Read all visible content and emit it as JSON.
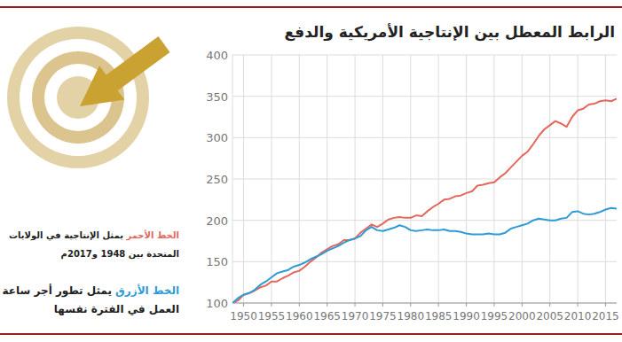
{
  "chart_data": {
    "type": "line",
    "title": "الرابط المعطل بين الإنتاجية الأمريكية والدفع",
    "x": [
      1948,
      1949,
      1950,
      1951,
      1952,
      1953,
      1954,
      1955,
      1956,
      1957,
      1958,
      1959,
      1960,
      1961,
      1962,
      1963,
      1964,
      1965,
      1966,
      1967,
      1968,
      1969,
      1970,
      1971,
      1972,
      1973,
      1974,
      1975,
      1976,
      1977,
      1978,
      1979,
      1980,
      1981,
      1982,
      1983,
      1984,
      1985,
      1986,
      1987,
      1988,
      1989,
      1990,
      1991,
      1992,
      1993,
      1994,
      1995,
      1996,
      1997,
      1998,
      1999,
      2000,
      2001,
      2002,
      2003,
      2004,
      2005,
      2006,
      2007,
      2008,
      2009,
      2010,
      2011,
      2012,
      2013,
      2014,
      2015,
      2016,
      2017
    ],
    "xlim": [
      1948,
      2017
    ],
    "xticks": [
      1950,
      1955,
      1960,
      1965,
      1970,
      1975,
      1980,
      1985,
      1990,
      1995,
      2000,
      2005,
      2010,
      2015
    ],
    "ylim": [
      100,
      400
    ],
    "yticks": [
      100,
      150,
      200,
      250,
      300,
      350,
      400
    ],
    "grid": true,
    "series": [
      {
        "name": "الخط الأحمر",
        "color": "#e5675c",
        "description": [
          "يمثل الإنتاجية في الولايات",
          "المتحدة بين 1948 و2017م"
        ],
        "values": [
          100,
          103,
          110,
          112,
          115,
          119,
          121,
          126,
          126,
          130,
          133,
          137,
          139,
          144,
          150,
          155,
          161,
          165,
          169,
          171,
          176,
          176,
          178,
          185,
          190,
          195,
          192,
          196,
          201,
          203,
          204,
          203,
          203,
          206,
          205,
          211,
          216,
          220,
          225,
          226,
          229,
          230,
          233,
          235,
          242,
          243,
          245,
          246,
          252,
          257,
          264,
          271,
          278,
          283,
          292,
          302,
          310,
          315,
          320,
          317,
          313,
          325,
          333,
          335,
          340,
          341,
          344,
          345,
          344,
          347
        ]
      },
      {
        "name": "الخط الأزرق",
        "color": "#2e9bd6",
        "description": [
          "يمثل تطور أجر ساعة",
          "العمل في الفترة نفسها"
        ],
        "values": [
          100,
          106,
          110,
          112,
          116,
          122,
          126,
          131,
          136,
          138,
          140,
          144,
          146,
          149,
          153,
          156,
          159,
          163,
          166,
          169,
          173,
          176,
          178,
          181,
          188,
          192,
          188,
          187,
          189,
          191,
          194,
          192,
          188,
          187,
          188,
          189,
          188,
          188,
          189,
          187,
          187,
          186,
          184,
          183,
          183,
          183,
          184,
          183,
          183,
          185,
          190,
          192,
          194,
          196,
          200,
          202,
          201,
          200,
          200,
          202,
          203,
          210,
          211,
          208,
          207,
          208,
          210,
          213,
          215,
          214
        ]
      }
    ]
  }
}
